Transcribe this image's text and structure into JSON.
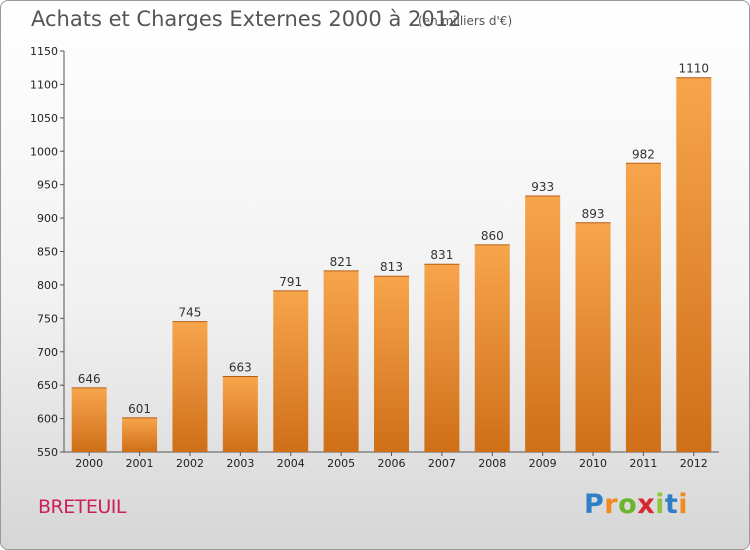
{
  "title": "Achats et Charges Externes 2000 à 2012",
  "subtitle": "(en milliers d'€)",
  "location": "BRETEUIL",
  "logo": [
    "P",
    "r",
    "o",
    "x",
    "i",
    "t",
    "i"
  ],
  "colors": {
    "bar_top": "#f7a54c",
    "bar_bottom": "#cf6f18",
    "title": "#555555",
    "location": "#cc1f5e",
    "logo": [
      "#2e7fc6",
      "#f08a1e",
      "#6bb42b",
      "#d8282f",
      "#8cc63f",
      "#2e7fc6",
      "#f08a1e"
    ]
  },
  "chart_data": {
    "type": "bar",
    "categories": [
      "2000",
      "2001",
      "2002",
      "2003",
      "2004",
      "2005",
      "2006",
      "2007",
      "2008",
      "2009",
      "2010",
      "2011",
      "2012"
    ],
    "values": [
      646,
      601,
      745,
      663,
      791,
      821,
      813,
      831,
      860,
      933,
      893,
      982,
      1110
    ],
    "ylim": [
      550,
      1150
    ],
    "yticks": [
      550,
      600,
      650,
      700,
      750,
      800,
      850,
      900,
      950,
      1000,
      1050,
      1100,
      1150
    ],
    "grid": false,
    "legend": "none"
  }
}
